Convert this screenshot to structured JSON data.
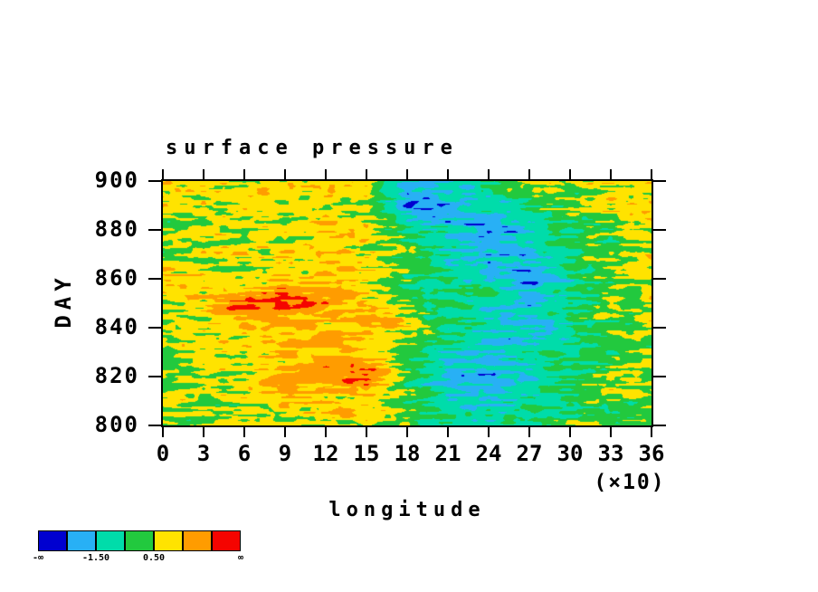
{
  "page": {
    "background": "#ffffff"
  },
  "chart_data": {
    "type": "heatmap",
    "title": "surface pressure",
    "xlabel": "longitude",
    "x_unit_note": "(×10)",
    "ylabel": "DAY",
    "x_ticks": [
      "0",
      "3",
      "6",
      "9",
      "12",
      "15",
      "18",
      "21",
      "24",
      "27",
      "30",
      "33",
      "36"
    ],
    "x_range": [
      0,
      360
    ],
    "y_ticks": [
      "900",
      "880",
      "860",
      "840",
      "820",
      "800"
    ],
    "y_range": [
      800,
      900
    ],
    "grid": "off",
    "legend_position": "bottom-left",
    "levels": [
      -2.5,
      -1.5,
      -0.5,
      0.5,
      1.5,
      2.5
    ],
    "palette": [
      "#0000d0",
      "#28b0f5",
      "#00dcaa",
      "#22c93e",
      "#ffe300",
      "#ff9c00",
      "#f50400"
    ],
    "colorbar_labels": [
      "-∞",
      "-1.50",
      "0.50",
      "∞"
    ],
    "colorbar_label_boundaries": [
      0,
      2,
      4,
      7
    ],
    "field": {
      "description": "mean surface pressure anomaly on lon x day grid; rendered with stochastic streak noise",
      "lon_points": [
        0,
        30,
        60,
        90,
        120,
        150,
        180,
        210,
        240,
        270,
        300,
        330,
        360
      ],
      "day_points": [
        900,
        890,
        880,
        870,
        860,
        850,
        840,
        830,
        820,
        810,
        800
      ],
      "mean_values": [
        [
          1.1,
          0.9,
          0.6,
          0.8,
          1.0,
          1.0,
          -1.9,
          -1.6,
          -0.6,
          0.2,
          0.5,
          1.0,
          1.1
        ],
        [
          0.9,
          0.7,
          0.7,
          0.9,
          1.1,
          0.9,
          -2.3,
          -2.2,
          -1.2,
          -0.3,
          0.3,
          0.8,
          0.9
        ],
        [
          0.6,
          0.5,
          0.7,
          0.9,
          1.1,
          0.9,
          -0.3,
          -1.2,
          -2.4,
          -1.2,
          -0.2,
          0.3,
          0.6
        ],
        [
          0.6,
          0.6,
          0.8,
          1.0,
          1.2,
          0.9,
          0.2,
          -0.8,
          -2.0,
          -1.6,
          -0.6,
          0.2,
          0.6
        ],
        [
          0.8,
          0.9,
          1.1,
          1.2,
          1.3,
          1.0,
          0.3,
          -0.6,
          -1.2,
          -2.4,
          -1.0,
          0.3,
          0.8
        ],
        [
          0.7,
          1.0,
          2.2,
          2.7,
          1.9,
          1.2,
          0.4,
          -0.5,
          -1.0,
          -1.7,
          -0.7,
          0.2,
          0.7
        ],
        [
          0.6,
          0.8,
          1.3,
          1.6,
          1.4,
          1.2,
          0.4,
          -0.6,
          -1.2,
          -1.4,
          -0.5,
          0.1,
          0.6
        ],
        [
          0.5,
          0.7,
          0.9,
          1.3,
          1.6,
          1.5,
          0.3,
          -1.1,
          -1.7,
          -0.9,
          -0.3,
          0.3,
          0.5
        ],
        [
          0.4,
          0.6,
          1.0,
          1.6,
          2.3,
          2.8,
          0.3,
          -1.7,
          -2.3,
          -1.1,
          -0.3,
          0.6,
          0.4
        ],
        [
          0.5,
          0.5,
          0.8,
          1.1,
          1.3,
          1.0,
          0.1,
          -0.9,
          -1.3,
          -0.8,
          -0.1,
          0.4,
          0.5
        ],
        [
          0.6,
          0.4,
          0.6,
          0.9,
          1.0,
          0.8,
          0.0,
          -0.6,
          -0.9,
          -0.5,
          0.1,
          0.4,
          0.6
        ]
      ],
      "noise_seed": 1234567,
      "noise_octaves": [
        {
          "nx": 24,
          "ny": 96,
          "amp": 0.8
        },
        {
          "nx": 72,
          "ny": 48,
          "amp": 0.35
        },
        {
          "nx": 8,
          "ny": 24,
          "amp": 0.45
        }
      ]
    }
  }
}
